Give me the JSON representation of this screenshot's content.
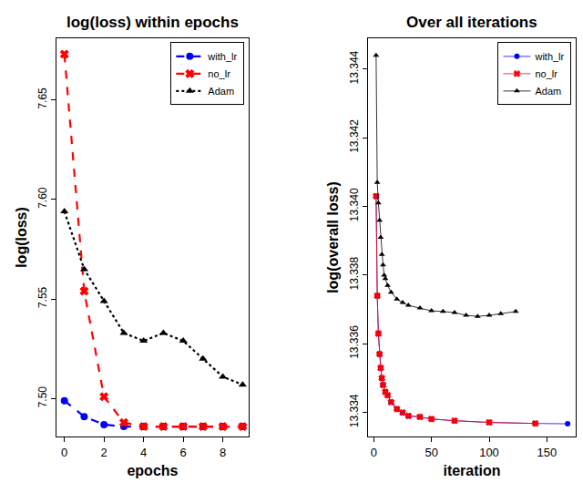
{
  "chart_data": [
    {
      "type": "line",
      "title": "log(loss) within epochs",
      "x_label": "epochs",
      "y_label": "log(loss)",
      "x": [
        0,
        1,
        2,
        3,
        4,
        5,
        6,
        7,
        8,
        9
      ],
      "series": [
        {
          "name": "with_lr",
          "color": "#0000ff",
          "marker": "circle",
          "line_style": "dashed",
          "values": [
            7.499,
            7.491,
            7.487,
            7.486,
            7.486,
            7.486,
            7.486,
            7.486,
            7.486,
            7.486
          ]
        },
        {
          "name": "no_lr",
          "color": "#ff0000",
          "marker": "cross",
          "line_style": "dashed",
          "values": [
            7.673,
            7.554,
            7.501,
            7.488,
            7.486,
            7.486,
            7.486,
            7.486,
            7.486,
            7.486
          ]
        },
        {
          "name": "Adam",
          "color": "#000000",
          "marker": "triangle",
          "line_style": "dotted",
          "values": [
            7.594,
            7.565,
            7.549,
            7.533,
            7.529,
            7.533,
            7.529,
            7.52,
            7.511,
            7.507
          ]
        }
      ],
      "xlim": [
        -0.4,
        9.3
      ],
      "ylim": [
        7.481,
        7.681
      ],
      "xticks": [
        0,
        2,
        4,
        6,
        8
      ],
      "yticks": [
        {
          "value": 7.5,
          "label": "7.50"
        },
        7.55,
        {
          "value": 7.6,
          "label": "7.60"
        },
        7.65
      ],
      "grid": false,
      "legend": "top right"
    },
    {
      "type": "line",
      "title": "Over all iterations",
      "x_label": "iteration",
      "y_label": "log(overall loss)",
      "series": [
        {
          "name": "with_lr",
          "color": "#0000ff",
          "marker": "circle",
          "line_style": "solid",
          "x": [
            2,
            3,
            4,
            5,
            6,
            7,
            8,
            10,
            12,
            15,
            20,
            25,
            30,
            40,
            50,
            70,
            100,
            140,
            168
          ],
          "values": [
            13.3403,
            13.3374,
            13.3363,
            13.3357,
            13.3353,
            13.335,
            13.3348,
            13.3346,
            13.3345,
            13.3343,
            13.3341,
            13.334,
            13.3339,
            13.33387,
            13.33381,
            13.33376,
            13.33371,
            13.33368,
            13.33367
          ]
        },
        {
          "name": "no_lr",
          "color": "#ff0000",
          "marker": "cross",
          "line_style": "solid",
          "x": [
            2,
            3,
            4,
            5,
            6,
            7,
            8,
            10,
            12,
            15,
            20,
            25,
            30,
            40,
            50,
            70,
            100,
            140
          ],
          "values": [
            13.3403,
            13.3374,
            13.3363,
            13.3357,
            13.3353,
            13.335,
            13.3348,
            13.3346,
            13.3345,
            13.3343,
            13.3341,
            13.334,
            13.3339,
            13.33387,
            13.33381,
            13.33376,
            13.33371,
            13.33368
          ]
        },
        {
          "name": "Adam",
          "color": "#000000",
          "marker": "triangle",
          "line_style": "solid",
          "x": [
            2,
            3,
            4,
            5,
            6,
            7,
            8,
            9,
            10,
            12,
            15,
            20,
            25,
            30,
            40,
            50,
            60,
            70,
            80,
            90,
            100,
            110,
            123
          ],
          "values": [
            13.3444,
            13.3407,
            13.3401,
            13.3396,
            13.3391,
            13.3386,
            13.3383,
            13.338,
            13.3379,
            13.3377,
            13.3375,
            13.3373,
            13.3372,
            13.33712,
            13.33704,
            13.33696,
            13.33694,
            13.33691,
            13.33683,
            13.3368,
            13.33683,
            13.33688,
            13.33694
          ]
        }
      ],
      "xlim": [
        -5,
        175
      ],
      "ylim": [
        13.3333,
        13.3449
      ],
      "xticks": [
        0,
        50,
        100,
        150
      ],
      "yticks": [
        13.334,
        13.336,
        13.338,
        {
          "value": 13.34,
          "label": "13.340"
        },
        13.342,
        13.344
      ],
      "grid": false,
      "legend": "top right"
    }
  ]
}
